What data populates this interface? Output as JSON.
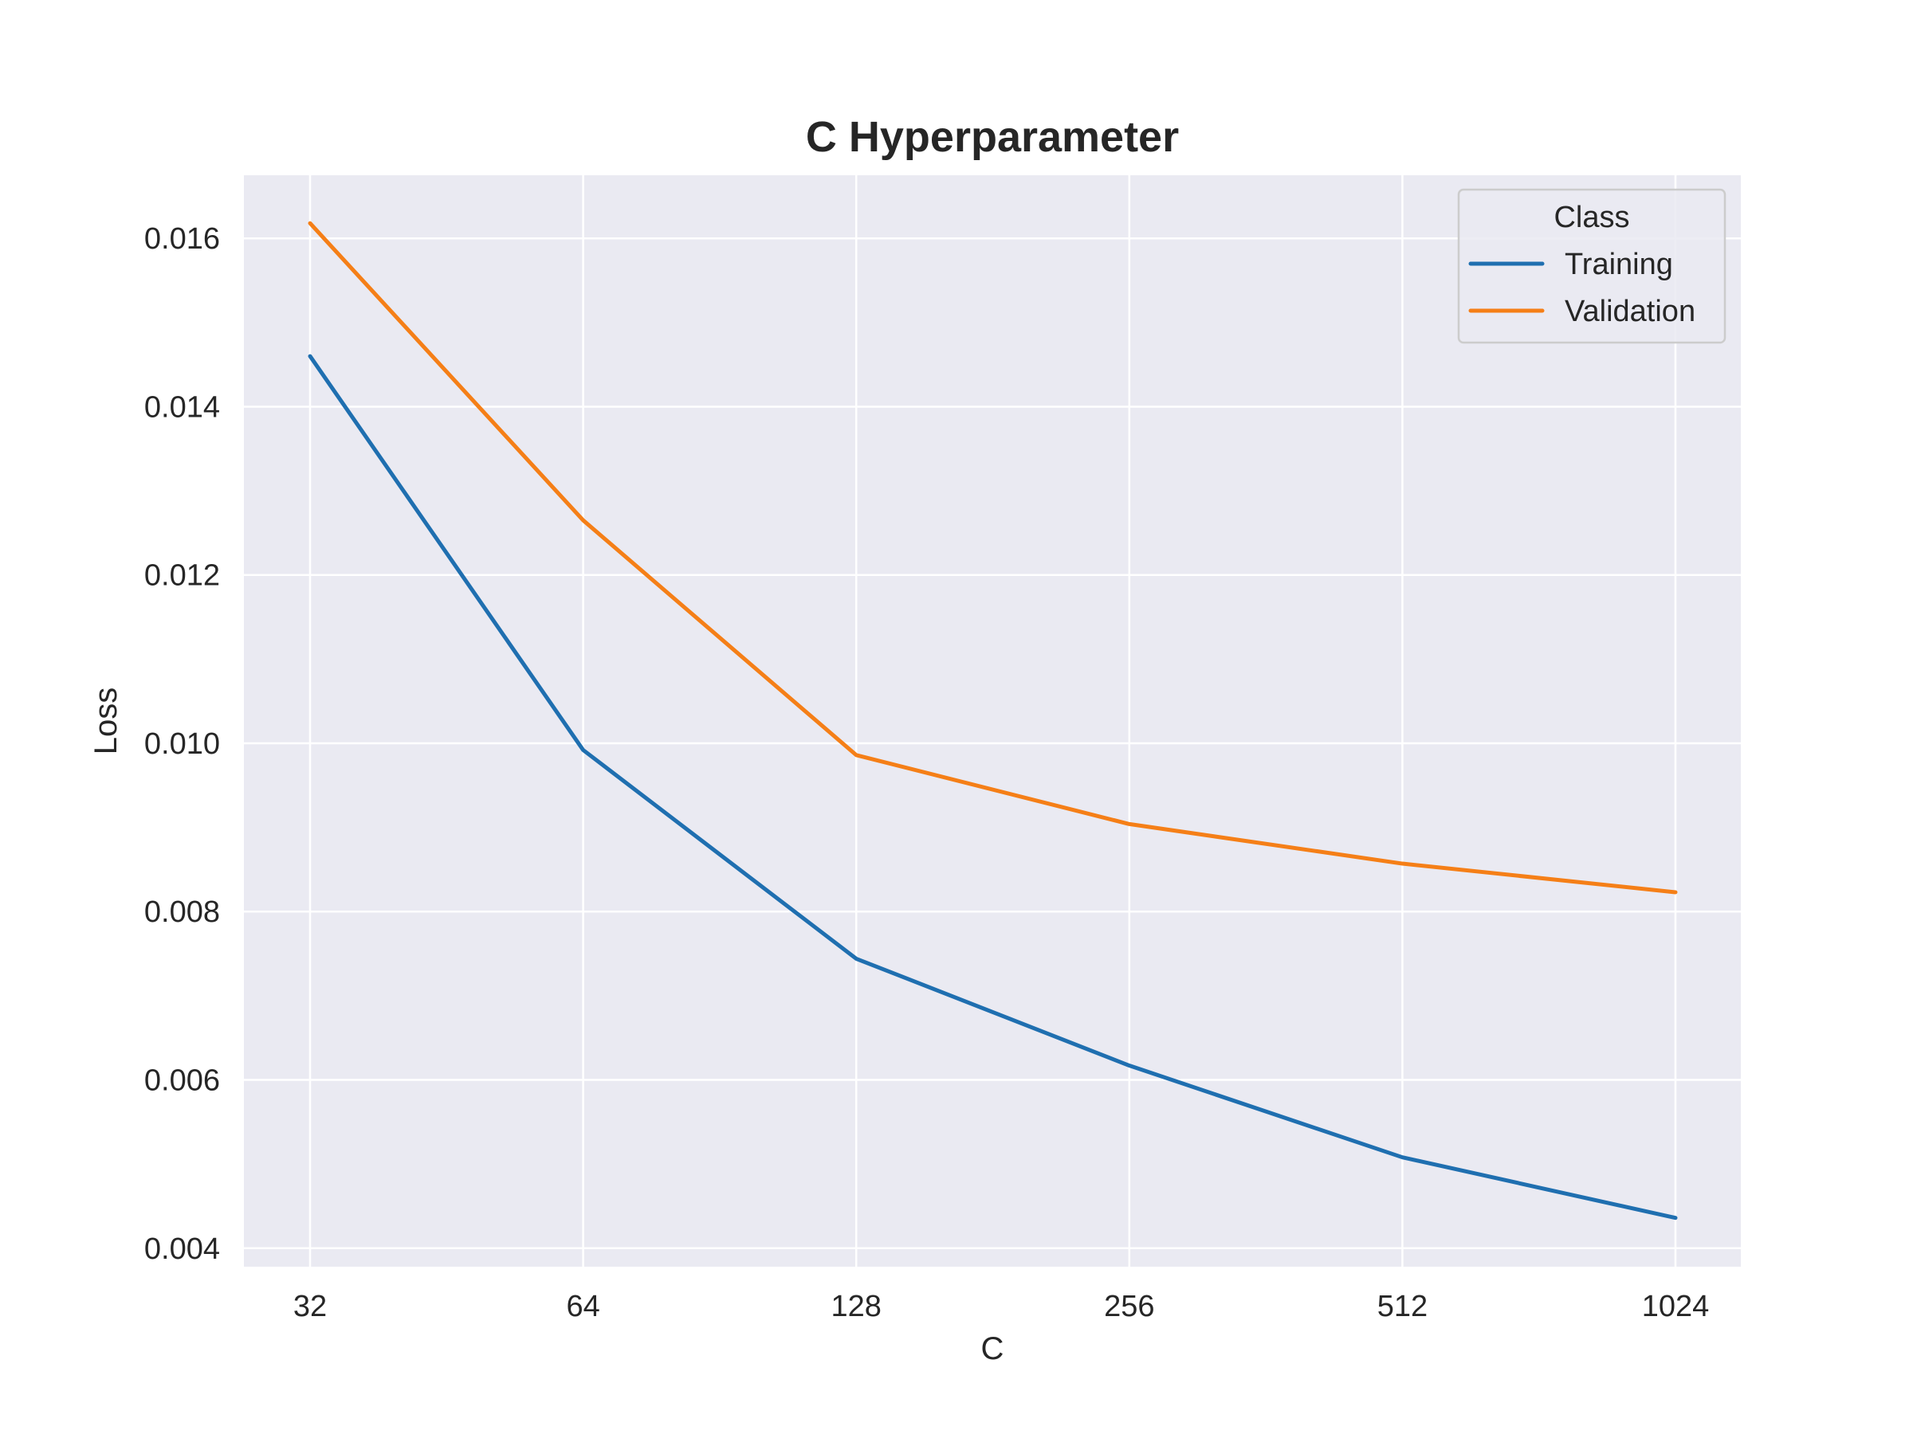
{
  "chart_data": {
    "type": "line",
    "title": "C Hyperparameter",
    "xlabel": "C",
    "ylabel": "Loss",
    "categories": [
      "32",
      "64",
      "128",
      "256",
      "512",
      "1024"
    ],
    "x_scale": "log2",
    "yticks": [
      "0.004",
      "0.006",
      "0.008",
      "0.010",
      "0.012",
      "0.014",
      "0.016"
    ],
    "ylim": [
      0.00378,
      0.01675
    ],
    "grid": true,
    "legend": {
      "title": "Class",
      "position": "top-right"
    },
    "series": [
      {
        "name": "Training",
        "color": "#1f6fb0",
        "values": [
          0.0146,
          0.00992,
          0.00744,
          0.00617,
          0.00508,
          0.00436
        ]
      },
      {
        "name": "Validation",
        "color": "#f57f17",
        "values": [
          0.01618,
          0.01265,
          0.00986,
          0.00904,
          0.00857,
          0.00823
        ]
      }
    ]
  },
  "colors": {
    "plot_background": "#eaeaf2",
    "grid": "#ffffff",
    "text": "#262626"
  }
}
